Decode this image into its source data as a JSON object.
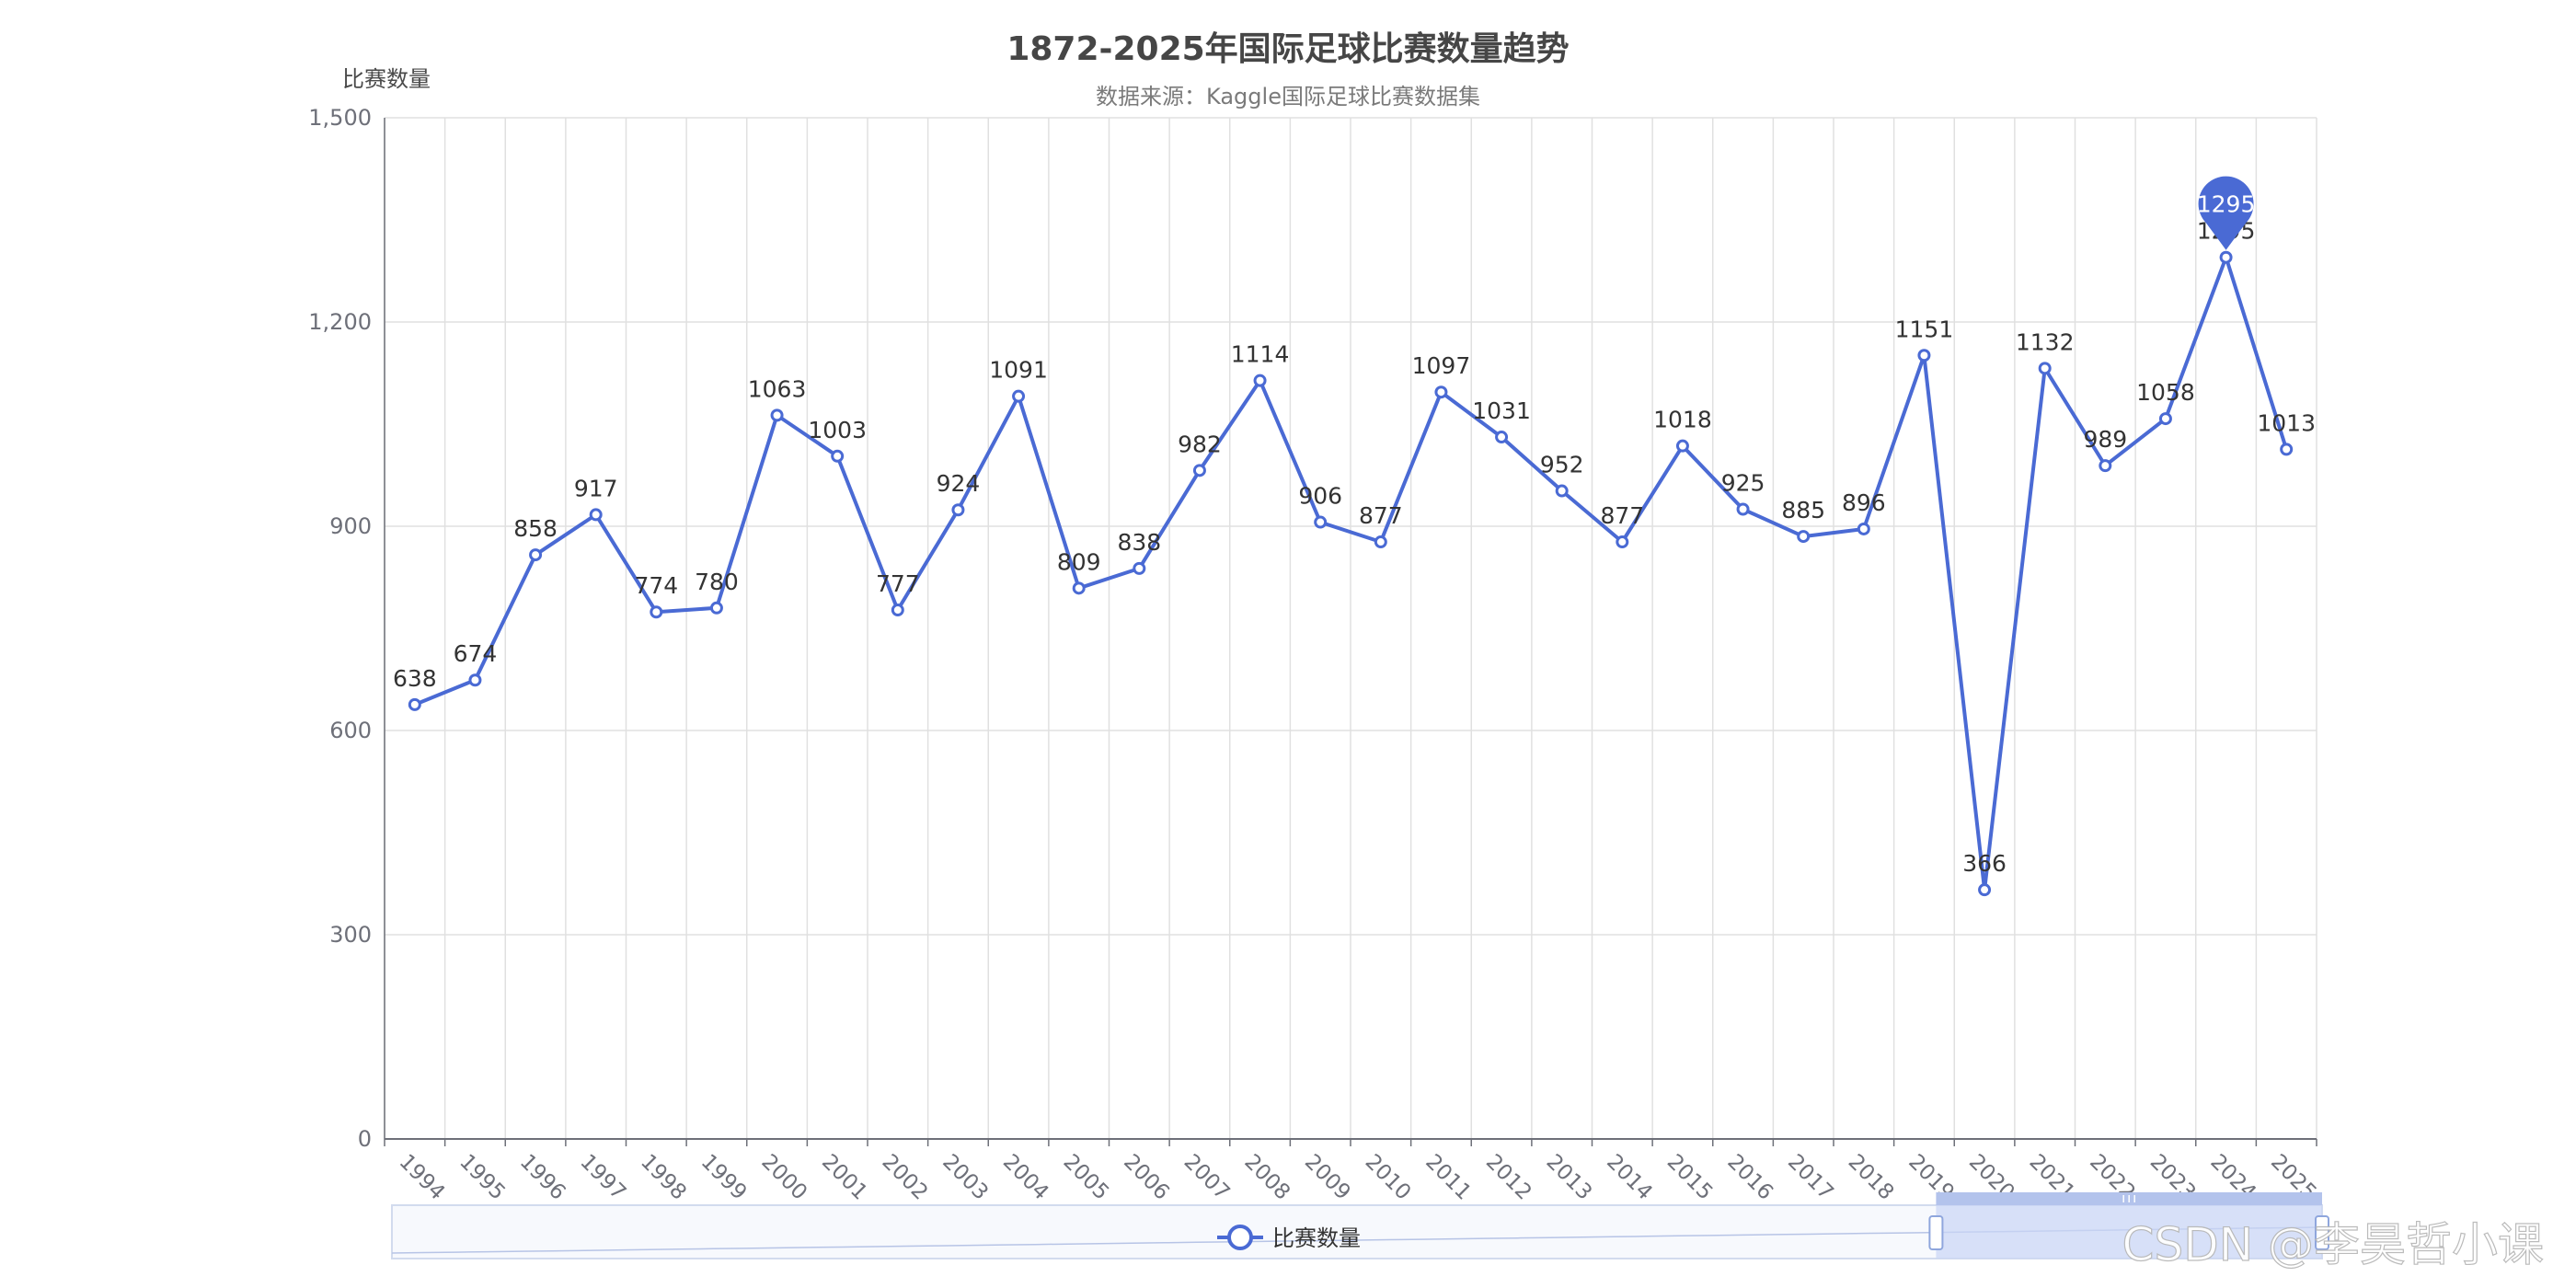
{
  "chart_data": {
    "type": "line",
    "title": "1872-2025年国际足球比赛数量趋势",
    "subtitle": "数据来源：Kaggle国际足球比赛数据集",
    "ylabel": "比赛数量",
    "xlabel": "",
    "ylim": [
      0,
      1500
    ],
    "yticks": [
      "0",
      "300",
      "600",
      "900",
      "1,200",
      "1,500"
    ],
    "grid": true,
    "legend_position": "bottom-center",
    "x": [
      "1994",
      "1995",
      "1996",
      "1997",
      "1998",
      "1999",
      "2000",
      "2001",
      "2002",
      "2003",
      "2004",
      "2005",
      "2006",
      "2007",
      "2008",
      "2009",
      "2010",
      "2011",
      "2012",
      "2013",
      "2014",
      "2015",
      "2016",
      "2017",
      "2018",
      "2019",
      "2020",
      "2021",
      "2022",
      "2023",
      "2024",
      "2025"
    ],
    "series": [
      {
        "name": "比赛数量",
        "values": [
          638,
          674,
          858,
          917,
          774,
          780,
          1063,
          1003,
          777,
          924,
          1091,
          809,
          838,
          982,
          1114,
          906,
          877,
          1097,
          1031,
          952,
          877,
          1018,
          925,
          885,
          896,
          1151,
          366,
          1132,
          989,
          1058,
          1295,
          1013
        ],
        "color": "#4a6ad4",
        "max_marker": "1295"
      }
    ],
    "datazoom": {
      "start_fraction": 0.8,
      "end_fraction": 1.0
    }
  },
  "watermark": "CSDN @李昊哲小课",
  "colors": {
    "line": "#4a6ad4",
    "grid": "#e0e0e0",
    "axis": "#6e7079"
  }
}
